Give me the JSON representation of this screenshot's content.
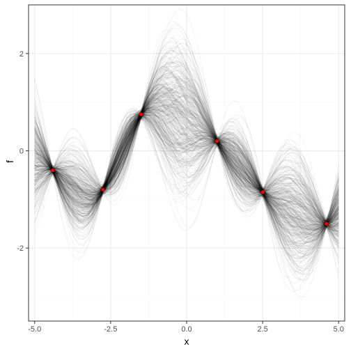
{
  "chart_data": {
    "type": "line",
    "title": "",
    "xlabel": "x",
    "ylabel": "f",
    "xlim": [
      -5.2,
      5.2
    ],
    "ylim": [
      -3.5,
      3.0
    ],
    "x_ticks": [
      -5.0,
      -2.5,
      0.0,
      2.5,
      5.0
    ],
    "x_tick_labels": [
      "-5.0",
      "-2.5",
      "0.0",
      "2.5",
      "5.0"
    ],
    "y_ticks": [
      -2,
      0,
      2
    ],
    "y_tick_labels": [
      "-2",
      "0",
      "2"
    ],
    "grid": true,
    "theme": "black-and-white",
    "colors": {
      "sample_line": "#000000",
      "observation_point": "#ff0000",
      "panel_border": "#333333",
      "grid_major": "#ebebeb",
      "grid_minor": "#f5f5f5"
    },
    "sample_curves": {
      "description_count": 400,
      "opacity": 0.08,
      "x_range": [
        -5.0,
        5.0
      ]
    },
    "observations": [
      {
        "x": -4.4,
        "y": -0.4
      },
      {
        "x": -2.75,
        "y": -0.8
      },
      {
        "x": -1.5,
        "y": 0.75
      },
      {
        "x": 1.0,
        "y": 0.2
      },
      {
        "x": 2.5,
        "y": -0.85
      },
      {
        "x": 4.6,
        "y": -1.5
      }
    ]
  }
}
